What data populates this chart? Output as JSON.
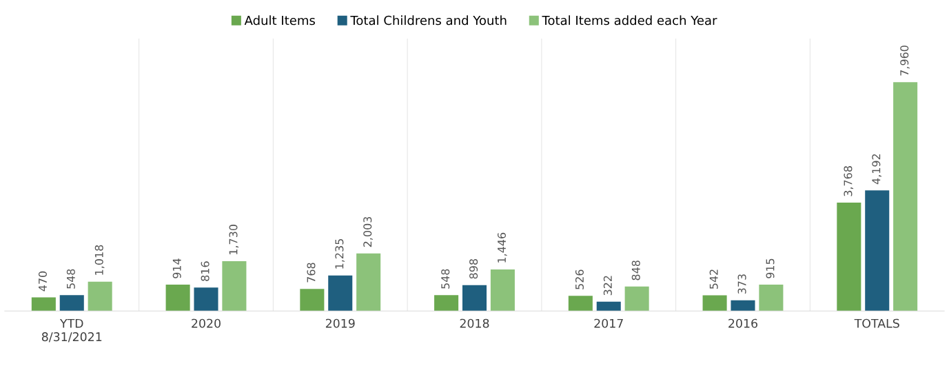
{
  "chart_data": {
    "type": "bar",
    "categories": [
      "YTD\n8/31/2021",
      "2020",
      "2019",
      "2018",
      "2017",
      "2016",
      "TOTALS"
    ],
    "series": [
      {
        "name": "Adult Items",
        "color": "#6aa84f",
        "values": [
          470,
          914,
          768,
          548,
          526,
          542,
          3768
        ],
        "value_labels": [
          "470",
          "914",
          "768",
          "548",
          "526",
          "542",
          "3,768"
        ]
      },
      {
        "name": "Total Childrens and Youth",
        "color": "#1f5f7f",
        "values": [
          548,
          816,
          1235,
          898,
          322,
          373,
          4192
        ],
        "value_labels": [
          "548",
          "816",
          "1,235",
          "898",
          "322",
          "373",
          "4,192"
        ]
      },
      {
        "name": "Total Items added each Year",
        "color": "#8cc27a",
        "values": [
          1018,
          1730,
          2003,
          1446,
          848,
          915,
          7960
        ],
        "value_labels": [
          "1,018",
          "1,730",
          "2,003",
          "1,446",
          "848",
          "915",
          "7,960"
        ]
      }
    ],
    "grid": "x",
    "legend": "top",
    "tick_labels": "x"
  }
}
